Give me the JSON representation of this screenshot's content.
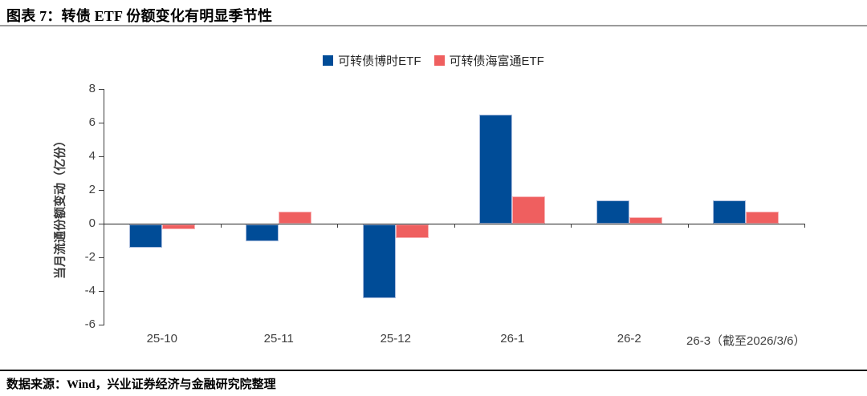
{
  "figure": {
    "title": "图表 7：转债 ETF 份额变化有明显季节性",
    "source": "数据来源：Wind，兴业证券经济与金融研究院整理"
  },
  "chart_data": {
    "type": "bar",
    "title": "",
    "categories": [
      "25-10",
      "25-11",
      "25-12",
      "26-1",
      "26-2",
      "26-3（截至2026/3/6）"
    ],
    "series": [
      {
        "name": "可转债博时ETF",
        "color": "#004C97",
        "values": [
          -1.4,
          -1.0,
          -4.4,
          6.5,
          1.4,
          1.4
        ]
      },
      {
        "name": "可转债海富通ETF",
        "color": "#EF5F5F",
        "values": [
          -0.3,
          0.7,
          -0.8,
          1.6,
          0.4,
          0.7
        ]
      }
    ],
    "xlabel": "",
    "ylabel": "当月流通份额变动（亿份）",
    "yticks": [
      8,
      6,
      4,
      2,
      0,
      -2,
      -4,
      -6
    ],
    "ylim": [
      -6,
      8
    ],
    "grid": false,
    "legend_position": "top-center"
  }
}
